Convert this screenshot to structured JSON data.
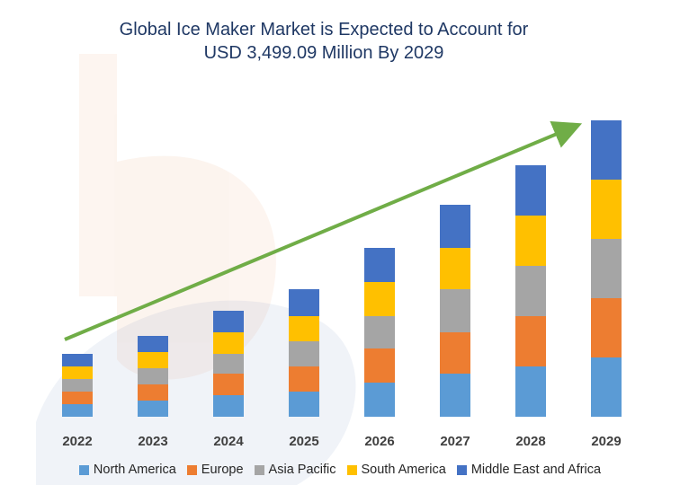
{
  "chart_data": {
    "type": "bar",
    "stacked": true,
    "title": "Global Ice Maker Market is Expected to Account for USD 3,499.09 Million By 2029",
    "title_lines": [
      "Global Ice Maker Market is Expected to Account for",
      "USD 3,499.09 Million By 2029"
    ],
    "xlabel": "",
    "ylabel": "",
    "categories": [
      "2022",
      "2023",
      "2024",
      "2025",
      "2026",
      "2027",
      "2028",
      "2029"
    ],
    "series": [
      {
        "name": "North America",
        "color": "#5b9bd5",
        "values": [
          14,
          18,
          24,
          28,
          38,
          48,
          56,
          66
        ]
      },
      {
        "name": "Europe",
        "color": "#ed7d31",
        "values": [
          14,
          18,
          24,
          28,
          38,
          46,
          56,
          66
        ]
      },
      {
        "name": "Asia Pacific",
        "color": "#a5a5a5",
        "values": [
          14,
          18,
          22,
          28,
          36,
          48,
          56,
          66
        ]
      },
      {
        "name": "South America",
        "color": "#ffc000",
        "values": [
          14,
          18,
          24,
          28,
          38,
          46,
          56,
          66
        ]
      },
      {
        "name": "Middle East and Africa",
        "color": "#4472c4",
        "values": [
          14,
          18,
          24,
          30,
          38,
          48,
          56,
          66
        ]
      }
    ],
    "ylim": [
      0,
      330
    ],
    "grid": false,
    "legend_position": "bottom",
    "trend_arrow_color": "#70ad47"
  }
}
